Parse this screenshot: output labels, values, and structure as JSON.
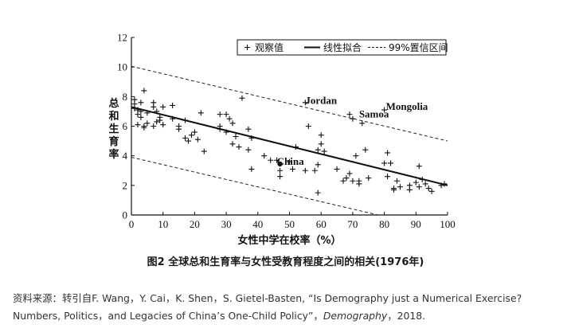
{
  "chart_data": {
    "type": "scatter",
    "xlabel": "女性中学在校率（%）",
    "ylabel": "总和生育率",
    "xlim": [
      0,
      100
    ],
    "ylim": [
      0,
      12
    ],
    "xticks": [
      "0",
      "10",
      "20",
      "30",
      "40",
      "50",
      "60",
      "70",
      "80",
      "90",
      "100"
    ],
    "yticks": [
      "0",
      "2",
      "4",
      "6",
      "8",
      "10",
      "12"
    ],
    "legend": {
      "position": "top-right",
      "items": [
        "观察值",
        "线性拟合",
        "99%置信区间"
      ]
    },
    "annotations": [
      {
        "text": "Jordan",
        "x": 55,
        "y": 7.5
      },
      {
        "text": "Samoa",
        "x": 72,
        "y": 6.6
      },
      {
        "text": "Mongolia",
        "x": 80.5,
        "y": 7.1
      },
      {
        "text": "China",
        "x": 46,
        "y": 3.4
      }
    ],
    "fit_line": {
      "x": [
        0,
        100
      ],
      "y": [
        7.3,
        2.0
      ]
    },
    "ci_upper": {
      "x": [
        0,
        100
      ],
      "y": [
        10.05,
        5.0
      ]
    },
    "ci_lower": {
      "x": [
        0,
        78
      ],
      "y": [
        3.9,
        0
      ]
    },
    "highlight_point": {
      "x": 47,
      "y": 3.45
    },
    "points": [
      [
        1,
        7.8
      ],
      [
        1,
        7.5
      ],
      [
        1,
        7.2
      ],
      [
        2,
        6.8
      ],
      [
        2,
        6.1
      ],
      [
        2,
        7.1
      ],
      [
        3,
        7.6
      ],
      [
        3,
        7.0
      ],
      [
        3,
        6.6
      ],
      [
        4,
        8.4
      ],
      [
        4,
        6.0
      ],
      [
        4,
        5.9
      ],
      [
        5,
        6.9
      ],
      [
        5,
        6.2
      ],
      [
        7,
        7.6
      ],
      [
        7,
        7.3
      ],
      [
        7,
        6.0
      ],
      [
        8,
        7.0
      ],
      [
        8,
        6.3
      ],
      [
        9,
        6.6
      ],
      [
        9,
        6.4
      ],
      [
        10,
        7.3
      ],
      [
        10,
        6.1
      ],
      [
        13,
        7.4
      ],
      [
        13,
        6.5
      ],
      [
        15,
        6.0
      ],
      [
        15,
        5.8
      ],
      [
        17,
        6.4
      ],
      [
        17,
        5.2
      ],
      [
        18,
        5.0
      ],
      [
        19,
        5.4
      ],
      [
        20,
        5.6
      ],
      [
        21,
        5.1
      ],
      [
        22,
        6.9
      ],
      [
        23,
        4.3
      ],
      [
        28,
        6.0
      ],
      [
        28,
        5.8
      ],
      [
        28,
        6.8
      ],
      [
        30,
        6.8
      ],
      [
        30,
        5.6
      ],
      [
        31,
        6.5
      ],
      [
        32,
        6.2
      ],
      [
        32,
        4.8
      ],
      [
        33,
        5.3
      ],
      [
        34,
        4.6
      ],
      [
        35,
        7.9
      ],
      [
        37,
        5.8
      ],
      [
        37,
        4.4
      ],
      [
        38,
        5.2
      ],
      [
        38,
        3.1
      ],
      [
        42,
        4.0
      ],
      [
        44,
        3.7
      ],
      [
        46,
        3.7
      ],
      [
        47,
        3.0
      ],
      [
        47,
        2.6
      ],
      [
        50,
        3.6
      ],
      [
        51,
        3.1
      ],
      [
        52,
        4.6
      ],
      [
        55,
        7.6
      ],
      [
        55,
        3.0
      ],
      [
        56,
        6.0
      ],
      [
        58,
        3.0
      ],
      [
        59,
        4.4
      ],
      [
        59,
        3.4
      ],
      [
        59,
        1.5
      ],
      [
        60,
        5.4
      ],
      [
        60,
        4.8
      ],
      [
        61,
        4.3
      ],
      [
        65,
        3.1
      ],
      [
        67,
        2.3
      ],
      [
        68,
        2.5
      ],
      [
        69,
        6.8
      ],
      [
        69,
        2.8
      ],
      [
        70,
        6.5
      ],
      [
        70,
        2.3
      ],
      [
        71,
        4.0
      ],
      [
        72,
        2.3
      ],
      [
        72,
        2.1
      ],
      [
        73,
        6.2
      ],
      [
        74,
        4.4
      ],
      [
        75,
        2.5
      ],
      [
        80,
        7.1
      ],
      [
        80,
        3.5
      ],
      [
        81,
        4.2
      ],
      [
        81,
        2.6
      ],
      [
        82,
        3.5
      ],
      [
        83,
        1.8
      ],
      [
        83,
        1.7
      ],
      [
        84,
        2.3
      ],
      [
        85,
        1.9
      ],
      [
        88,
        1.7
      ],
      [
        88,
        2.0
      ],
      [
        90,
        2.2
      ],
      [
        91,
        3.3
      ],
      [
        91,
        1.9
      ],
      [
        92,
        2.4
      ],
      [
        93,
        2.1
      ],
      [
        94,
        1.8
      ],
      [
        95,
        1.6
      ],
      [
        98,
        2.0
      ],
      [
        99,
        2.1
      ]
    ]
  },
  "figure": {
    "caption": "图2 全球总和生育率与女性受教育程度之间的相关(1976年)",
    "source_prefix": "资料来源：转引自F. Wang，Y. Cai，K. Shen，S. Gietel-Basten, “Is Demography just a Numerical Exercise? Numbers, Politics，and Legacies of China’s One-Child Policy”，",
    "source_journal": "Demography",
    "source_suffix": "，2018."
  }
}
